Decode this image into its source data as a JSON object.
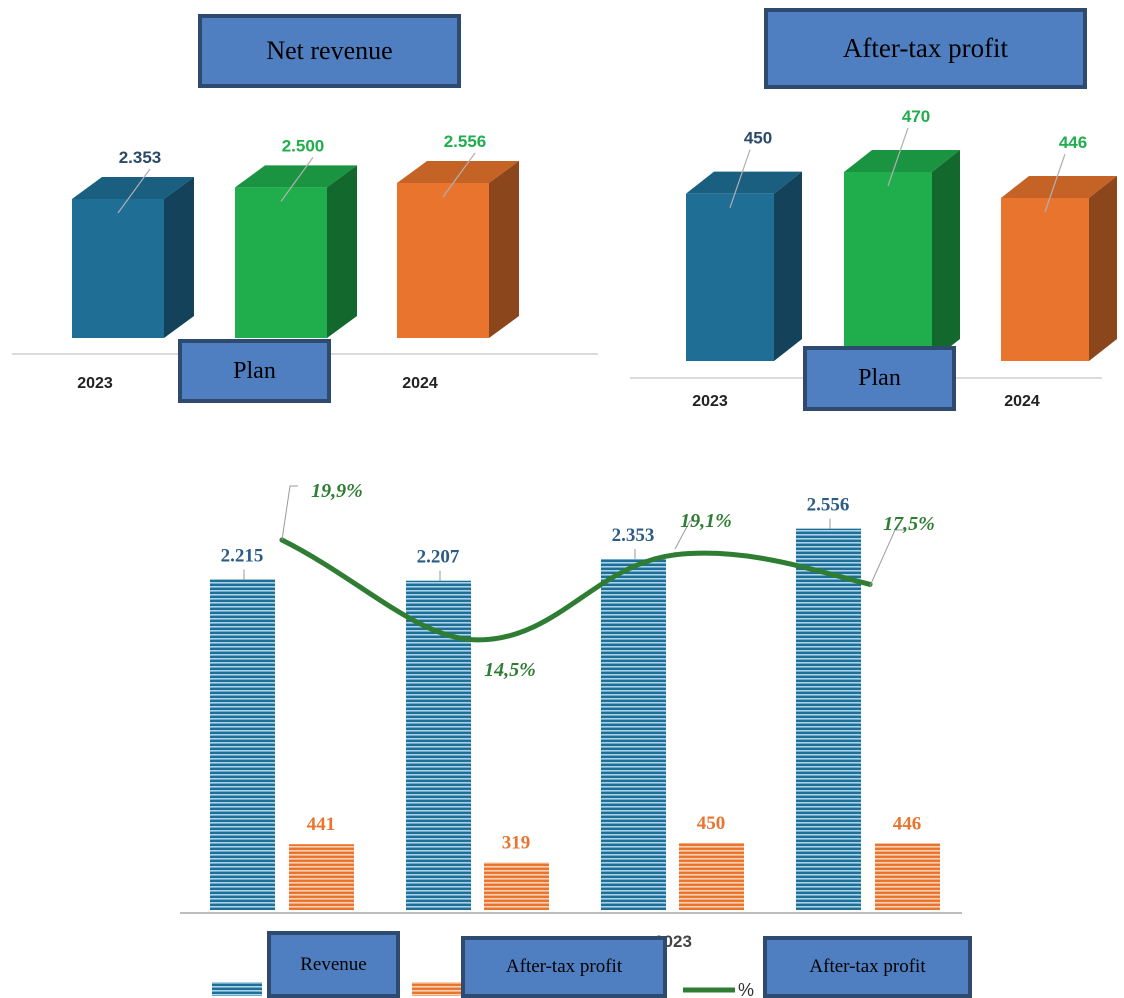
{
  "top_left": {
    "title": "Net revenue",
    "plan_label": "Plan",
    "years": [
      "2023",
      "2024"
    ]
  },
  "top_right": {
    "title": "After-tax profit",
    "plan_label": "Plan",
    "years": [
      "2023",
      "2024"
    ]
  },
  "bottom": {
    "legend": {
      "revenue": "Revenue",
      "profit": "After-tax profit",
      "percent_box": "After-tax profit",
      "percent_symbol": "%"
    },
    "x_labels": [
      "2023"
    ]
  },
  "colors": {
    "blue": "#1f6e96",
    "green": "#1fae4b",
    "orange": "#e8742e",
    "line": "#2e7d32",
    "label_box": "#4f7fc0"
  },
  "chart_data": [
    {
      "type": "bar",
      "categories": [
        "2023",
        "Plan",
        "2024"
      ],
      "values": [
        2353,
        2500,
        2556
      ],
      "value_labels": [
        "2.353",
        "2.500",
        "2.556"
      ],
      "title": "Net revenue"
    },
    {
      "type": "bar",
      "categories": [
        "2023",
        "Plan",
        "2024"
      ],
      "values": [
        450,
        470,
        446
      ],
      "value_labels": [
        "450",
        "470",
        "446"
      ],
      "title": "After-tax profit"
    },
    {
      "type": "bar",
      "categories": [
        "",
        "",
        "2023",
        ""
      ],
      "series": [
        {
          "name": "Revenue",
          "values": [
            2215,
            2207,
            2353,
            2556
          ],
          "labels": [
            "2.215",
            "2.207",
            "2.353",
            "2.556"
          ]
        },
        {
          "name": "After-tax profit",
          "values": [
            441,
            319,
            450,
            446
          ],
          "labels": [
            "441",
            "319",
            "450",
            "446"
          ]
        },
        {
          "name": "%",
          "type": "line",
          "values": [
            19.9,
            14.5,
            19.1,
            17.5
          ],
          "labels": [
            "19,9%",
            "14,5%",
            "19,1%",
            "17,5%"
          ]
        }
      ]
    }
  ]
}
